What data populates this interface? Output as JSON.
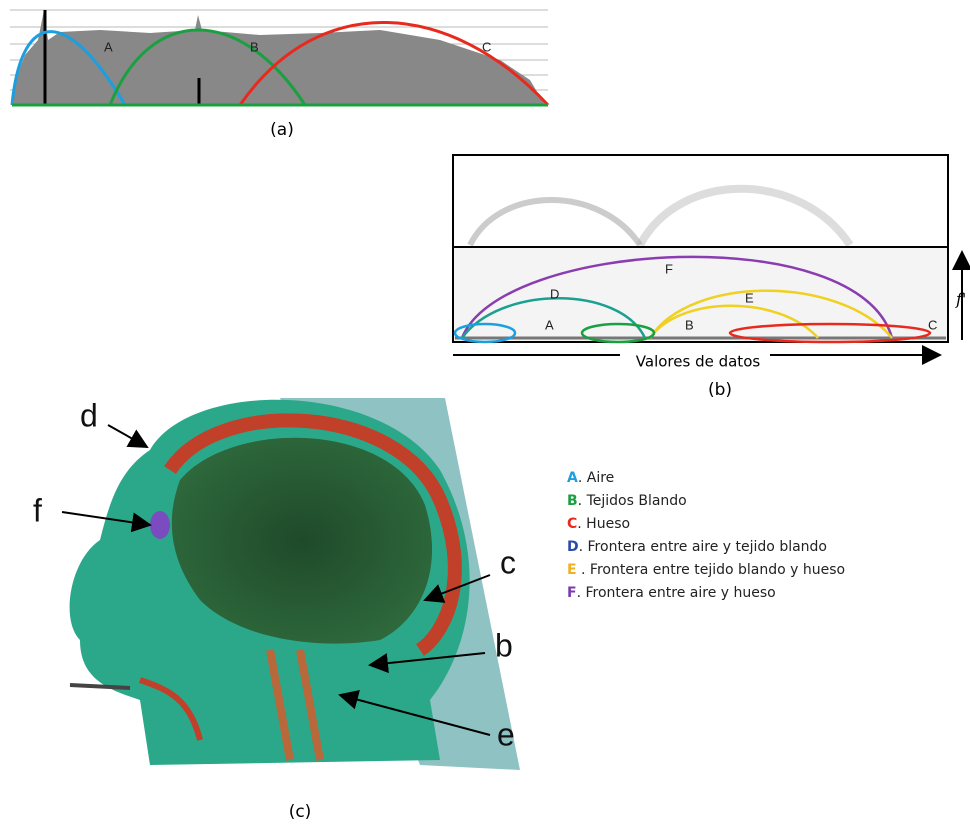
{
  "panel_a": {
    "caption": "(a)",
    "labels": [
      "A",
      "B",
      "C"
    ]
  },
  "panel_b": {
    "caption": "(b)",
    "labels": [
      "A",
      "B",
      "C",
      "D",
      "E",
      "F"
    ],
    "x_axis_label": "Valores de datos",
    "y_axis_label": "f'"
  },
  "panel_c": {
    "caption": "(c)",
    "labels": [
      "d",
      "f",
      "c",
      "b",
      "e"
    ]
  },
  "legend": [
    {
      "letter": "A",
      "text": ". Aire"
    },
    {
      "letter": "B",
      "text": ". Tejidos Blando"
    },
    {
      "letter": "C",
      "text": ". Hueso"
    },
    {
      "letter": "D",
      "text": ". Frontera entre aire y tejido blando"
    },
    {
      "letter": "E",
      "text": " . Frontera entre tejido blando y hueso"
    },
    {
      "letter": "F",
      "text": ". Frontera entre aire y hueso"
    }
  ]
}
